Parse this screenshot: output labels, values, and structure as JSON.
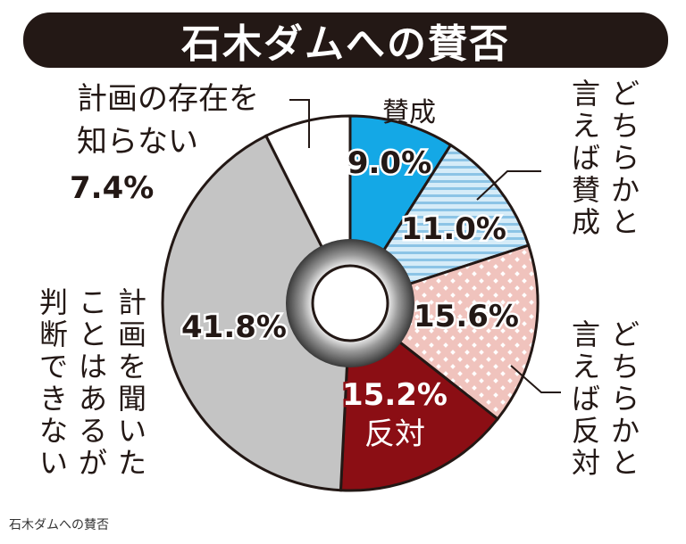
{
  "title": "石木ダムへの賛否",
  "caption": "石木ダムへの賛否",
  "colors": {
    "sansei": "#14a8e6",
    "dochiraka_sansei": "#bfe0f3",
    "dochiraka_hantai": "#f2c9c4",
    "hantai": "#8b0e14",
    "handan_dekinai": "#c4c4c4",
    "shiranai": "#ffffff",
    "outline": "#231815"
  },
  "chart_data": {
    "type": "pie",
    "title": "石木ダムへの賛否",
    "donut": true,
    "slices": [
      {
        "label": "賛成",
        "value": 9.0,
        "display": "9.0%",
        "pattern": "solid"
      },
      {
        "label": "どちらかと言えば賛成",
        "value": 11.0,
        "display": "11.0%",
        "pattern": "stripes"
      },
      {
        "label": "どちらかと言えば反対",
        "value": 15.6,
        "display": "15.6%",
        "pattern": "dots"
      },
      {
        "label": "反対",
        "value": 15.2,
        "display": "15.2%",
        "pattern": "solid"
      },
      {
        "label": "計画を聞いたことはあるが判断できない",
        "value": 41.8,
        "display": "41.8%",
        "pattern": "solid"
      },
      {
        "label": "計画の存在を知らない",
        "value": 7.4,
        "display": "7.4%",
        "pattern": "solid"
      }
    ]
  },
  "labels": {
    "sansei": "賛成",
    "dochiraka_sansei": "どちらかと言えば賛成",
    "dochiraka_hantai": "どちらかと言えば反対",
    "hantai": "反対",
    "handan": "計画を聞いたことはあるが判断できない",
    "shiranai_line1": "計画の存在を",
    "shiranai_line2": "知らない"
  }
}
